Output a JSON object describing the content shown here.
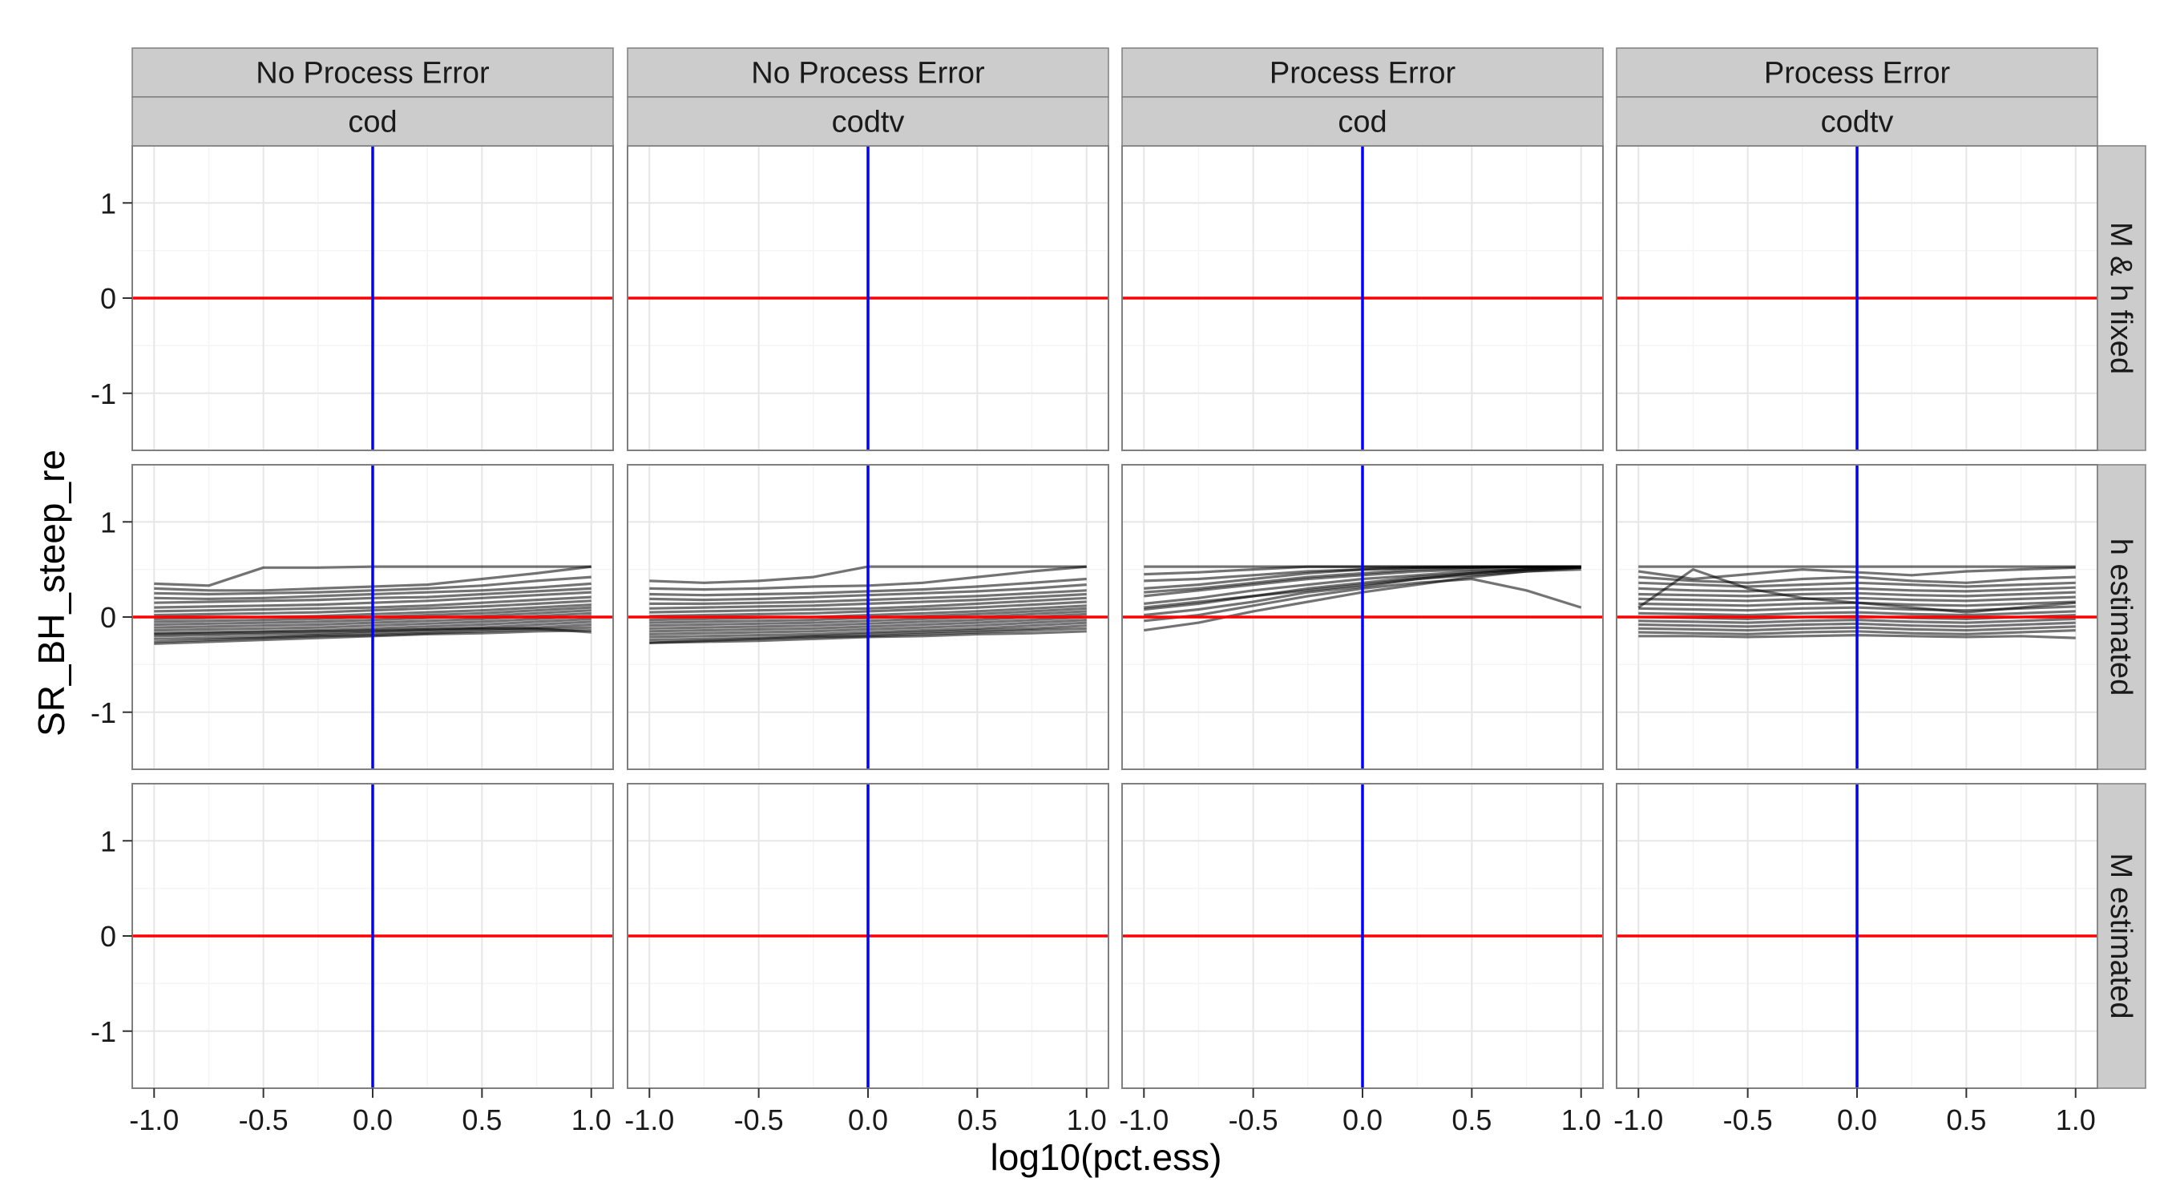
{
  "chart_data": {
    "type": "line",
    "xlabel": "log10(pct.ess)",
    "ylabel": "SR_BH_steep_re",
    "xlim": [
      -1.1,
      1.1
    ],
    "ylim": [
      -1.6,
      1.6
    ],
    "x_ticks": [
      "-1.0",
      "-0.5",
      "0.0",
      "0.5",
      "1.0"
    ],
    "x_tick_values": [
      -1.0,
      -0.5,
      0.0,
      0.5,
      1.0
    ],
    "y_ticks": [
      "-1",
      "0",
      "1"
    ],
    "y_tick_values": [
      -1,
      0,
      1
    ],
    "grid": true,
    "column_strips": [
      {
        "top": "No Process Error",
        "bottom": "cod"
      },
      {
        "top": "No Process Error",
        "bottom": "codtv"
      },
      {
        "top": "Process Error",
        "bottom": "cod"
      },
      {
        "top": "Process Error",
        "bottom": "codtv"
      }
    ],
    "row_strips": [
      "M & h fixed",
      "h estimated",
      "M estimated"
    ],
    "reference_lines": {
      "horizontal": {
        "y": 0,
        "color": "#ff0000"
      },
      "vertical": {
        "x": 0,
        "color": "#0000ff"
      }
    },
    "x": [
      -1.0,
      -0.75,
      -0.5,
      -0.25,
      0.0,
      0.25,
      0.5,
      0.75,
      1.0
    ],
    "line_color": "#000000",
    "panels": [
      {
        "row": "h estimated",
        "column": "No Process Error / cod",
        "series": [
          {
            "values": [
              0.35,
              0.33,
              0.52,
              0.52,
              0.53,
              0.53,
              0.53,
              0.53,
              0.53
            ]
          },
          {
            "values": [
              0.3,
              0.28,
              0.28,
              0.3,
              0.32,
              0.34,
              0.4,
              0.46,
              0.53
            ]
          },
          {
            "values": [
              0.25,
              0.24,
              0.25,
              0.26,
              0.28,
              0.3,
              0.33,
              0.38,
              0.42
            ]
          },
          {
            "values": [
              0.2,
              0.19,
              0.2,
              0.22,
              0.24,
              0.26,
              0.28,
              0.31,
              0.35
            ]
          },
          {
            "values": [
              0.15,
              0.16,
              0.17,
              0.18,
              0.2,
              0.21,
              0.24,
              0.27,
              0.3
            ]
          },
          {
            "values": [
              0.1,
              0.11,
              0.12,
              0.13,
              0.15,
              0.17,
              0.2,
              0.23,
              0.26
            ]
          },
          {
            "values": [
              0.06,
              0.07,
              0.08,
              0.09,
              0.1,
              0.12,
              0.15,
              0.18,
              0.21
            ]
          },
          {
            "values": [
              0.02,
              0.03,
              0.04,
              0.05,
              0.07,
              0.09,
              0.11,
              0.14,
              0.17
            ]
          },
          {
            "values": [
              -0.02,
              -0.01,
              0.0,
              0.01,
              0.03,
              0.05,
              0.07,
              0.1,
              0.13
            ]
          },
          {
            "values": [
              -0.05,
              -0.04,
              -0.03,
              -0.02,
              0.0,
              0.02,
              0.04,
              0.07,
              0.1
            ]
          },
          {
            "values": [
              -0.08,
              -0.07,
              -0.06,
              -0.05,
              -0.03,
              -0.01,
              0.01,
              0.04,
              0.07
            ]
          },
          {
            "values": [
              -0.11,
              -0.1,
              -0.09,
              -0.08,
              -0.06,
              -0.04,
              -0.02,
              0.01,
              0.04
            ]
          },
          {
            "values": [
              -0.14,
              -0.13,
              -0.12,
              -0.11,
              -0.09,
              -0.07,
              -0.05,
              -0.02,
              0.01
            ]
          },
          {
            "values": [
              -0.17,
              -0.16,
              -0.15,
              -0.14,
              -0.12,
              -0.1,
              -0.08,
              -0.05,
              -0.02
            ]
          },
          {
            "values": [
              -0.2,
              -0.19,
              -0.18,
              -0.17,
              -0.15,
              -0.13,
              -0.11,
              -0.08,
              -0.05
            ]
          },
          {
            "values": [
              -0.23,
              -0.22,
              -0.21,
              -0.19,
              -0.17,
              -0.15,
              -0.13,
              -0.11,
              -0.08
            ]
          },
          {
            "values": [
              -0.26,
              -0.24,
              -0.22,
              -0.2,
              -0.19,
              -0.17,
              -0.15,
              -0.13,
              -0.11
            ]
          },
          {
            "values": [
              -0.28,
              -0.26,
              -0.24,
              -0.22,
              -0.2,
              -0.18,
              -0.17,
              -0.15,
              -0.14
            ]
          },
          {
            "values": [
              -0.18,
              -0.17,
              -0.16,
              -0.15,
              -0.14,
              -0.13,
              -0.12,
              -0.12,
              -0.16
            ]
          }
        ]
      },
      {
        "row": "h estimated",
        "column": "No Process Error / codtv",
        "series": [
          {
            "values": [
              0.38,
              0.36,
              0.38,
              0.42,
              0.53,
              0.53,
              0.53,
              0.53,
              0.53
            ]
          },
          {
            "values": [
              0.3,
              0.29,
              0.3,
              0.32,
              0.33,
              0.36,
              0.42,
              0.48,
              0.53
            ]
          },
          {
            "values": [
              0.24,
              0.23,
              0.24,
              0.25,
              0.27,
              0.29,
              0.32,
              0.36,
              0.4
            ]
          },
          {
            "values": [
              0.19,
              0.18,
              0.19,
              0.21,
              0.23,
              0.25,
              0.27,
              0.3,
              0.34
            ]
          },
          {
            "values": [
              0.14,
              0.14,
              0.15,
              0.16,
              0.18,
              0.2,
              0.22,
              0.25,
              0.28
            ]
          },
          {
            "values": [
              0.09,
              0.1,
              0.11,
              0.12,
              0.14,
              0.16,
              0.18,
              0.21,
              0.24
            ]
          },
          {
            "values": [
              0.05,
              0.06,
              0.07,
              0.08,
              0.09,
              0.11,
              0.14,
              0.17,
              0.2
            ]
          },
          {
            "values": [
              0.01,
              0.02,
              0.03,
              0.04,
              0.06,
              0.08,
              0.1,
              0.13,
              0.16
            ]
          },
          {
            "values": [
              -0.03,
              -0.02,
              -0.01,
              0.0,
              0.02,
              0.04,
              0.06,
              0.09,
              0.12
            ]
          },
          {
            "values": [
              -0.06,
              -0.05,
              -0.04,
              -0.03,
              -0.01,
              0.01,
              0.03,
              0.06,
              0.09
            ]
          },
          {
            "values": [
              -0.09,
              -0.08,
              -0.07,
              -0.06,
              -0.04,
              -0.02,
              0.0,
              0.03,
              0.06
            ]
          },
          {
            "values": [
              -0.12,
              -0.11,
              -0.1,
              -0.09,
              -0.07,
              -0.05,
              -0.03,
              0.0,
              0.03
            ]
          },
          {
            "values": [
              -0.15,
              -0.14,
              -0.13,
              -0.12,
              -0.1,
              -0.08,
              -0.06,
              -0.03,
              0.0
            ]
          },
          {
            "values": [
              -0.18,
              -0.17,
              -0.16,
              -0.15,
              -0.13,
              -0.11,
              -0.09,
              -0.06,
              -0.03
            ]
          },
          {
            "values": [
              -0.21,
              -0.2,
              -0.19,
              -0.18,
              -0.16,
              -0.14,
              -0.12,
              -0.09,
              -0.06
            ]
          },
          {
            "values": [
              -0.24,
              -0.23,
              -0.22,
              -0.2,
              -0.18,
              -0.16,
              -0.14,
              -0.12,
              -0.09
            ]
          },
          {
            "values": [
              -0.27,
              -0.25,
              -0.23,
              -0.21,
              -0.2,
              -0.18,
              -0.16,
              -0.14,
              -0.12
            ]
          },
          {
            "values": [
              -0.27,
              -0.26,
              -0.25,
              -0.23,
              -0.21,
              -0.2,
              -0.18,
              -0.17,
              -0.15
            ]
          }
        ]
      },
      {
        "row": "h estimated",
        "column": "Process Error / cod",
        "series": [
          {
            "values": [
              0.53,
              0.53,
              0.53,
              0.53,
              0.53,
              0.53,
              0.53,
              0.53,
              0.53
            ]
          },
          {
            "values": [
              0.45,
              0.47,
              0.5,
              0.53,
              0.53,
              0.53,
              0.53,
              0.53,
              0.53
            ]
          },
          {
            "values": [
              0.38,
              0.4,
              0.44,
              0.48,
              0.5,
              0.52,
              0.53,
              0.53,
              0.53
            ]
          },
          {
            "values": [
              0.3,
              0.34,
              0.4,
              0.46,
              0.5,
              0.52,
              0.52,
              0.53,
              0.53
            ]
          },
          {
            "values": [
              0.22,
              0.28,
              0.34,
              0.4,
              0.44,
              0.48,
              0.5,
              0.52,
              0.53
            ]
          },
          {
            "values": [
              0.14,
              0.2,
              0.28,
              0.34,
              0.4,
              0.44,
              0.48,
              0.5,
              0.52
            ]
          },
          {
            "values": [
              0.08,
              0.14,
              0.22,
              0.3,
              0.36,
              0.42,
              0.46,
              0.5,
              0.52
            ]
          },
          {
            "values": [
              0.02,
              0.08,
              0.16,
              0.26,
              0.32,
              0.4,
              0.44,
              0.48,
              0.5
            ]
          },
          {
            "values": [
              -0.04,
              0.02,
              0.12,
              0.22,
              0.3,
              0.36,
              0.4,
              0.28,
              0.1
            ]
          },
          {
            "values": [
              -0.14,
              -0.06,
              0.06,
              0.16,
              0.26,
              0.34,
              0.42,
              0.48,
              0.52
            ]
          },
          {
            "values": [
              0.1,
              0.16,
              0.22,
              0.28,
              0.34,
              0.4,
              0.46,
              0.5,
              0.53
            ]
          },
          {
            "values": [
              0.26,
              0.3,
              0.36,
              0.42,
              0.46,
              0.5,
              0.52,
              0.53,
              0.53
            ]
          }
        ]
      },
      {
        "row": "h estimated",
        "column": "Process Error / codtv",
        "series": [
          {
            "values": [
              0.53,
              0.53,
              0.53,
              0.53,
              0.53,
              0.53,
              0.53,
              0.53,
              0.53
            ]
          },
          {
            "values": [
              0.48,
              0.4,
              0.45,
              0.5,
              0.47,
              0.44,
              0.48,
              0.5,
              0.52
            ]
          },
          {
            "values": [
              0.42,
              0.38,
              0.36,
              0.4,
              0.42,
              0.38,
              0.36,
              0.4,
              0.42
            ]
          },
          {
            "values": [
              0.36,
              0.34,
              0.32,
              0.34,
              0.36,
              0.34,
              0.32,
              0.34,
              0.36
            ]
          },
          {
            "values": [
              0.3,
              0.28,
              0.27,
              0.29,
              0.3,
              0.28,
              0.27,
              0.29,
              0.31
            ]
          },
          {
            "values": [
              0.24,
              0.23,
              0.22,
              0.24,
              0.25,
              0.23,
              0.22,
              0.24,
              0.26
            ]
          },
          {
            "values": [
              0.19,
              0.18,
              0.17,
              0.19,
              0.2,
              0.18,
              0.17,
              0.19,
              0.21
            ]
          },
          {
            "values": [
              0.14,
              0.13,
              0.12,
              0.14,
              0.15,
              0.13,
              0.12,
              0.14,
              0.16
            ]
          },
          {
            "values": [
              0.09,
              0.08,
              0.07,
              0.09,
              0.1,
              0.08,
              0.07,
              0.09,
              0.11
            ]
          },
          {
            "values": [
              0.04,
              0.03,
              0.02,
              0.04,
              0.05,
              0.03,
              0.02,
              0.04,
              0.06
            ]
          },
          {
            "values": [
              0.0,
              -0.01,
              -0.02,
              0.0,
              0.01,
              -0.01,
              -0.02,
              0.0,
              0.02
            ]
          },
          {
            "values": [
              -0.04,
              -0.05,
              -0.06,
              -0.04,
              -0.03,
              -0.05,
              -0.06,
              -0.04,
              -0.02
            ]
          },
          {
            "values": [
              -0.08,
              -0.09,
              -0.1,
              -0.08,
              -0.07,
              -0.09,
              -0.1,
              -0.08,
              -0.06
            ]
          },
          {
            "values": [
              -0.12,
              -0.13,
              -0.14,
              -0.12,
              -0.11,
              -0.13,
              -0.14,
              -0.12,
              -0.1
            ]
          },
          {
            "values": [
              -0.16,
              -0.17,
              -0.18,
              -0.16,
              -0.15,
              -0.17,
              -0.18,
              -0.16,
              -0.14
            ]
          },
          {
            "values": [
              -0.2,
              -0.2,
              -0.21,
              -0.2,
              -0.19,
              -0.2,
              -0.21,
              -0.2,
              -0.22
            ]
          },
          {
            "values": [
              0.1,
              0.5,
              0.3,
              0.2,
              0.15,
              0.1,
              0.05,
              0.1,
              0.15
            ]
          }
        ]
      }
    ]
  }
}
